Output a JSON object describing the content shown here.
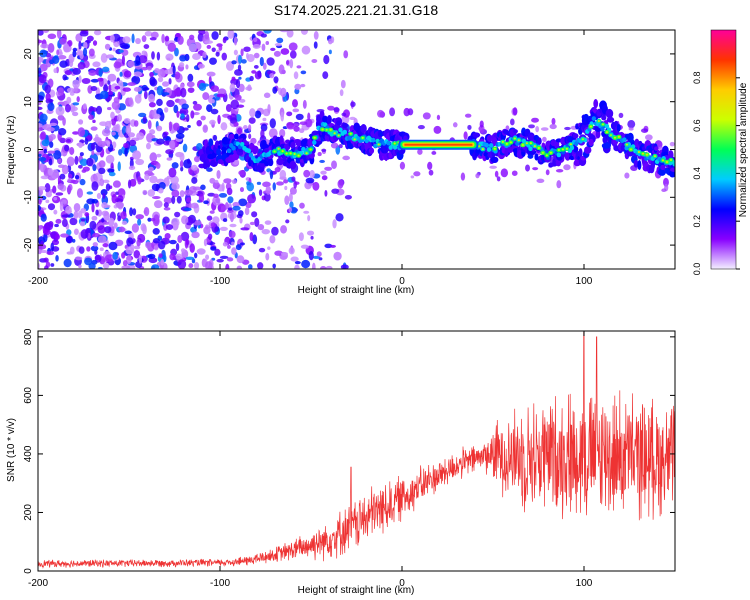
{
  "title": "S174.2025.221.21.31.G18",
  "chart_data": [
    {
      "type": "heatmap",
      "xlabel": "Height of straight line (km)",
      "ylabel": "Frequency (Hz)",
      "xlim": [
        -200,
        150
      ],
      "ylim": [
        -25,
        25
      ],
      "xticks": [
        -200,
        -100,
        0,
        100
      ],
      "xtick_labels": [
        "-200",
        "-100",
        "0",
        "100"
      ],
      "yticks": [
        -20,
        -10,
        0,
        10,
        20
      ],
      "ytick_labels": [
        "-20",
        "-10",
        "0",
        "10",
        "20"
      ],
      "ridge": [
        {
          "x": -100,
          "y": -1
        },
        {
          "x": -90,
          "y": 1
        },
        {
          "x": -80,
          "y": -2
        },
        {
          "x": -70,
          "y": 0
        },
        {
          "x": -60,
          "y": -1
        },
        {
          "x": -50,
          "y": 0
        },
        {
          "x": -45,
          "y": 5
        },
        {
          "x": -40,
          "y": 4
        },
        {
          "x": -30,
          "y": 3
        },
        {
          "x": -20,
          "y": 2
        },
        {
          "x": -10,
          "y": 1
        },
        {
          "x": 0,
          "y": 1
        },
        {
          "x": 40,
          "y": 1
        },
        {
          "x": 50,
          "y": 0
        },
        {
          "x": 60,
          "y": 2
        },
        {
          "x": 70,
          "y": 1
        },
        {
          "x": 80,
          "y": -1
        },
        {
          "x": 90,
          "y": 0
        },
        {
          "x": 100,
          "y": 2
        },
        {
          "x": 105,
          "y": 6
        },
        {
          "x": 110,
          "y": 5
        },
        {
          "x": 120,
          "y": 2
        },
        {
          "x": 130,
          "y": -1
        },
        {
          "x": 140,
          "y": -2
        },
        {
          "x": 150,
          "y": -3
        }
      ],
      "colorbar": {
        "label": "Normalized spectral amplitude",
        "range": [
          0,
          1
        ],
        "ticks": [
          0.0,
          0.2,
          0.4,
          0.6,
          0.8
        ],
        "tick_labels": [
          "0.0",
          "0.2",
          "0.4",
          "0.6",
          "0.8"
        ],
        "colors": [
          "#f4f0ff",
          "#8800ff",
          "#0000ff",
          "#00ccff",
          "#00ff55",
          "#ccff00",
          "#ffcc00",
          "#ff3300",
          "#ff0099"
        ]
      }
    },
    {
      "type": "line",
      "xlabel": "Height of straight line (km)",
      "ylabel": "SNR (10 * v/v)",
      "xlim": [
        -200,
        150
      ],
      "ylim": [
        0,
        820
      ],
      "xticks": [
        -200,
        -100,
        0,
        100
      ],
      "xtick_labels": [
        "-200",
        "-100",
        "0",
        "100"
      ],
      "yticks": [
        0,
        200,
        400,
        600,
        800
      ],
      "ytick_labels": [
        "0",
        "200",
        "400",
        "600",
        "800"
      ],
      "line_color": "#ee3333",
      "envelope": [
        {
          "x": -200,
          "mean": 25,
          "amp": 15
        },
        {
          "x": -100,
          "mean": 28,
          "amp": 15
        },
        {
          "x": -85,
          "mean": 35,
          "amp": 20
        },
        {
          "x": -70,
          "mean": 55,
          "amp": 30
        },
        {
          "x": -55,
          "mean": 80,
          "amp": 50
        },
        {
          "x": -40,
          "mean": 110,
          "amp": 80
        },
        {
          "x": -28,
          "mean": 150,
          "amp": 100
        },
        {
          "x": -15,
          "mean": 200,
          "amp": 110
        },
        {
          "x": 0,
          "mean": 250,
          "amp": 90
        },
        {
          "x": 15,
          "mean": 310,
          "amp": 70
        },
        {
          "x": 30,
          "mean": 360,
          "amp": 60
        },
        {
          "x": 45,
          "mean": 395,
          "amp": 60
        },
        {
          "x": 55,
          "mean": 400,
          "amp": 160
        },
        {
          "x": 70,
          "mean": 390,
          "amp": 220
        },
        {
          "x": 90,
          "mean": 400,
          "amp": 250
        },
        {
          "x": 110,
          "mean": 400,
          "amp": 260
        },
        {
          "x": 130,
          "mean": 390,
          "amp": 240
        },
        {
          "x": 150,
          "mean": 380,
          "amp": 220
        }
      ],
      "spikes": [
        {
          "x": -28,
          "y": 355
        },
        {
          "x": 100,
          "y": 815
        },
        {
          "x": 107,
          "y": 800
        }
      ]
    }
  ]
}
